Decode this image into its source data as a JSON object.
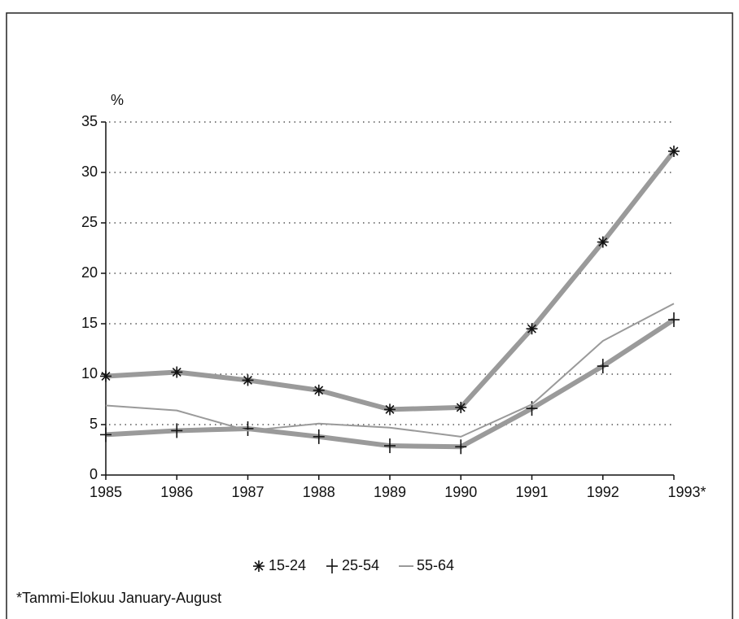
{
  "chart_data": {
    "type": "line",
    "ylabel": "%",
    "categories": [
      "1985",
      "1986",
      "1987",
      "1988",
      "1989",
      "1990",
      "1991",
      "1992",
      "1993*"
    ],
    "series": [
      {
        "name": "15-24",
        "color": "#9a9a9a",
        "marker": "asterisk",
        "values": [
          9.8,
          10.2,
          9.4,
          8.4,
          6.5,
          6.7,
          14.5,
          23.1,
          32.1
        ]
      },
      {
        "name": "25-54",
        "color": "#9a9a9a",
        "marker": "plus",
        "values": [
          4.0,
          4.4,
          4.6,
          3.8,
          2.9,
          2.8,
          6.6,
          10.8,
          15.4
        ]
      },
      {
        "name": "55-64",
        "color": "#9a9a9a",
        "marker": "none",
        "values": [
          6.9,
          6.4,
          4.4,
          5.1,
          4.7,
          3.8,
          7.0,
          13.3,
          17.0
        ]
      }
    ],
    "ylim": [
      0,
      35
    ],
    "yticks": [
      0,
      5,
      10,
      15,
      20,
      25,
      30,
      35
    ],
    "grid": true,
    "note": "*Tammi-Elokuu January-August"
  }
}
